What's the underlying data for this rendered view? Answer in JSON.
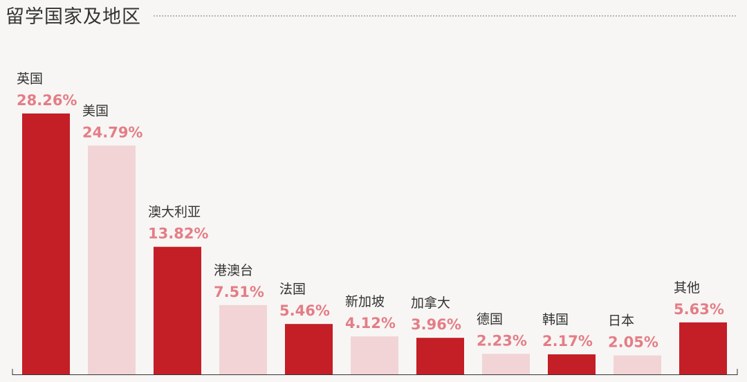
{
  "header": {
    "title": "留学国家及地区"
  },
  "colors": {
    "dark": "#c41e27",
    "light": "#f2d4d6",
    "value_text": "#e47d86",
    "axis": "#333333"
  },
  "chart_data": {
    "type": "bar",
    "title": "留学国家及地区",
    "xlabel": "",
    "ylabel": "",
    "ylim": [
      0,
      30
    ],
    "grid": false,
    "categories": [
      "英国",
      "美国",
      "澳大利亚",
      "港澳台",
      "法国",
      "新加坡",
      "加拿大",
      "德国",
      "韩国",
      "日本",
      "其他"
    ],
    "values": [
      28.26,
      24.79,
      13.82,
      7.51,
      5.46,
      4.12,
      3.96,
      2.23,
      2.17,
      2.05,
      5.63
    ],
    "value_labels": [
      "28.26%",
      "24.79%",
      "13.82%",
      "7.51%",
      "5.46%",
      "4.12%",
      "3.96%",
      "2.23%",
      "2.17%",
      "2.05%",
      "5.63%"
    ],
    "bar_styles": [
      "dark",
      "light",
      "dark",
      "light",
      "dark",
      "light",
      "dark",
      "light",
      "dark",
      "light",
      "dark"
    ]
  }
}
